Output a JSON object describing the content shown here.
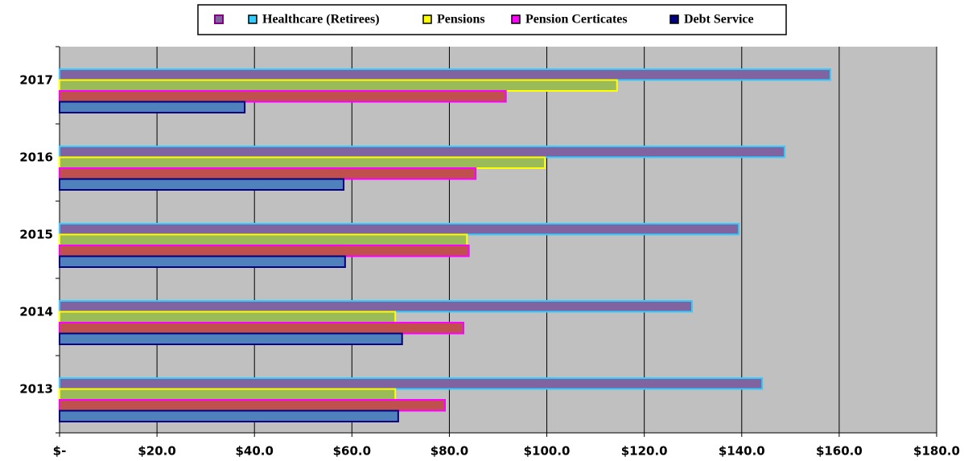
{
  "chart_data": {
    "type": "hbar",
    "categories": [
      "2013",
      "2014",
      "2015",
      "2016",
      "2017"
    ],
    "series": [
      {
        "name": "Healthcare (Retirees)",
        "color": "#8064a2",
        "border": "#33ccff",
        "values": [
          144.2,
          129.8,
          139.4,
          148.8,
          158.2
        ]
      },
      {
        "name": "Pensions",
        "color": "#9bbb59",
        "border": "#ffff00",
        "values": [
          68.9,
          68.9,
          83.6,
          99.6,
          114.4
        ]
      },
      {
        "name": "Pension Certicates",
        "color": "#c0504d",
        "border": "#ff00ff",
        "values": [
          79.1,
          82.9,
          84.0,
          85.4,
          91.6
        ]
      },
      {
        "name": "Debt Service",
        "color": "#4f81bd",
        "border": "#000080",
        "values": [
          69.5,
          70.3,
          58.6,
          58.3,
          38.0
        ]
      }
    ],
    "xlim": [
      0,
      180
    ],
    "xticks": [
      {
        "value": 0,
        "label": "$-"
      },
      {
        "value": 20,
        "label": "$20.0"
      },
      {
        "value": 40,
        "label": "$40.0"
      },
      {
        "value": 60,
        "label": "$60.0"
      },
      {
        "value": 80,
        "label": "$80.0"
      },
      {
        "value": 100,
        "label": "$100.0"
      },
      {
        "value": 120,
        "label": "$120.0"
      },
      {
        "value": 140,
        "label": "$140.0"
      },
      {
        "value": 160,
        "label": "$160.0"
      },
      {
        "value": 180,
        "label": "$180.0"
      }
    ],
    "grid": true,
    "plot_background": "#c0c0c0",
    "legend": "top"
  }
}
